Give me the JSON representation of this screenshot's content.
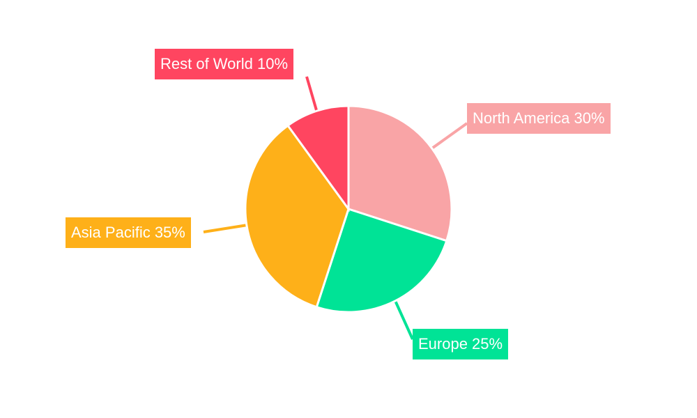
{
  "chart_data": {
    "type": "pie",
    "title": "",
    "start_angle": "top, clockwise",
    "legend": "none (callout labels)",
    "slices": [
      {
        "label": "North America",
        "value": 30,
        "display": "North America 30%",
        "color": "#f9a4a6"
      },
      {
        "label": "Europe",
        "value": 25,
        "display": "Europe 25%",
        "color": "#00e396"
      },
      {
        "label": "Asia Pacific",
        "value": 35,
        "display": "Asia Pacific 35%",
        "color": "#feb019"
      },
      {
        "label": "Rest of World",
        "value": 10,
        "display": "Rest of World 10%",
        "color": "#ff4560"
      }
    ]
  }
}
